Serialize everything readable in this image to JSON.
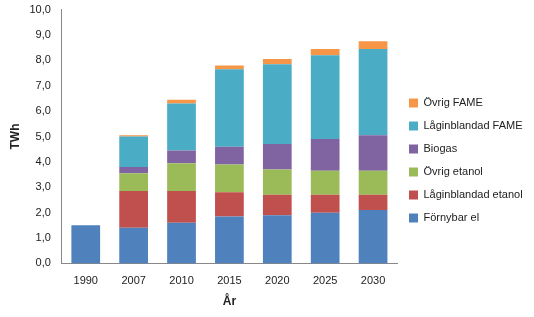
{
  "chart_data": {
    "type": "bar",
    "stacked": true,
    "x_label": "År",
    "y_label": "TWh",
    "categories": [
      "1990",
      "2007",
      "2010",
      "2015",
      "2020",
      "2025",
      "2030"
    ],
    "series": [
      {
        "name": "Förnybar el",
        "color": "#4f81bd",
        "values": [
          1.5,
          1.4,
          1.6,
          1.85,
          1.9,
          2.0,
          2.1
        ]
      },
      {
        "name": "Låginblandad etanol",
        "color": "#c0504d",
        "values": [
          0,
          1.45,
          1.25,
          0.95,
          0.8,
          0.7,
          0.6
        ]
      },
      {
        "name": "Övrig etanol",
        "color": "#9bbb59",
        "values": [
          0,
          0.7,
          1.1,
          1.1,
          1.0,
          0.95,
          0.95
        ]
      },
      {
        "name": "Biogas",
        "color": "#8064a2",
        "values": [
          0,
          0.25,
          0.5,
          0.7,
          1.0,
          1.25,
          1.4
        ]
      },
      {
        "name": "Låginblandad FAME",
        "color": "#4bacc6",
        "values": [
          0,
          1.2,
          1.85,
          3.05,
          3.15,
          3.3,
          3.4
        ]
      },
      {
        "name": "Övrig FAME",
        "color": "#f79646",
        "values": [
          0,
          0.05,
          0.15,
          0.15,
          0.2,
          0.25,
          0.3
        ]
      }
    ],
    "ylim": [
      0,
      10
    ],
    "yticks": [
      {
        "value": 0,
        "label": "0,0"
      },
      {
        "value": 1,
        "label": "1,0"
      },
      {
        "value": 2,
        "label": "2,0"
      },
      {
        "value": 3,
        "label": "3,0"
      },
      {
        "value": 4,
        "label": "4,0"
      },
      {
        "value": 5,
        "label": "5,0"
      },
      {
        "value": 6,
        "label": "6,0"
      },
      {
        "value": 7,
        "label": "7,0"
      },
      {
        "value": 8,
        "label": "8,0"
      },
      {
        "value": 9,
        "label": "9,0"
      },
      {
        "value": 10,
        "label": "10,0"
      }
    ],
    "grid": false,
    "legend": "right"
  }
}
